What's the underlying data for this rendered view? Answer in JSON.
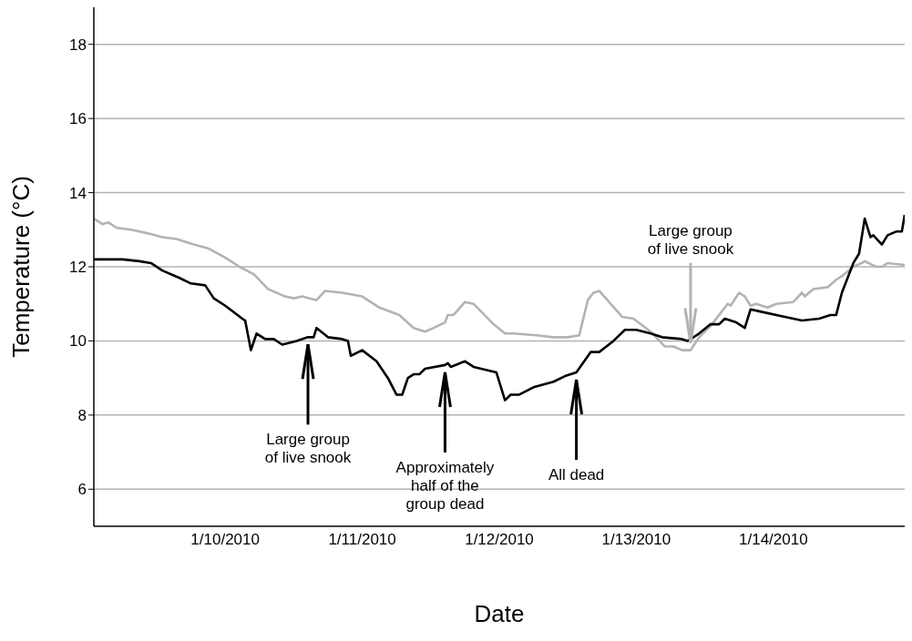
{
  "chart_data": {
    "type": "line",
    "xlabel": "Date",
    "ylabel": "Temperature (°C)",
    "xlim": [
      "2010-01-09T01:00",
      "2010-01-14T23:00"
    ],
    "ylim": [
      5,
      19
    ],
    "xticks": [
      {
        "value": "2010-01-10",
        "label": "1/10/2010"
      },
      {
        "value": "2010-01-11",
        "label": "1/11/2010"
      },
      {
        "value": "2010-01-12",
        "label": "1/12/2010"
      },
      {
        "value": "2010-01-13",
        "label": "1/13/2010"
      },
      {
        "value": "2010-01-14",
        "label": "1/14/2010"
      }
    ],
    "yticks": [
      6,
      8,
      10,
      12,
      14,
      16,
      18
    ],
    "grid": "y",
    "series": [
      {
        "color": "#b3b3b3",
        "x": [
          "2010-01-09T01:00",
          "2010-01-09T02:30",
          "2010-01-09T03:30",
          "2010-01-09T05:00",
          "2010-01-09T07:30",
          "2010-01-09T10:30",
          "2010-01-09T13:00",
          "2010-01-09T15:30",
          "2010-01-09T18:30",
          "2010-01-09T21:00",
          "2010-01-10T00:00",
          "2010-01-10T02:30",
          "2010-01-10T05:00",
          "2010-01-10T07:30",
          "2010-01-10T10:30",
          "2010-01-10T12:00",
          "2010-01-10T13:30",
          "2010-01-10T16:00",
          "2010-01-10T17:30",
          "2010-01-10T20:30",
          "2010-01-11T00:00",
          "2010-01-11T03:00",
          "2010-01-11T06:30",
          "2010-01-11T09:00",
          "2010-01-11T11:00",
          "2010-01-11T12:30",
          "2010-01-11T14:30",
          "2010-01-11T15:00",
          "2010-01-11T16:00",
          "2010-01-11T18:00",
          "2010-01-11T19:30",
          "2010-01-11T23:00",
          "2010-01-12T01:00",
          "2010-01-12T02:30",
          "2010-01-12T06:30",
          "2010-01-12T09:30",
          "2010-01-12T12:00",
          "2010-01-12T14:00",
          "2010-01-12T15:30",
          "2010-01-12T16:30",
          "2010-01-12T17:30",
          "2010-01-12T19:30",
          "2010-01-12T21:30",
          "2010-01-12T23:30",
          "2010-01-13T02:30",
          "2010-01-13T05:00",
          "2010-01-13T06:30",
          "2010-01-13T08:00",
          "2010-01-13T09:30",
          "2010-01-13T11:00",
          "2010-01-13T13:00",
          "2010-01-13T16:00",
          "2010-01-13T16:30",
          "2010-01-13T18:00",
          "2010-01-13T19:00",
          "2010-01-13T20:00",
          "2010-01-13T21:00",
          "2010-01-13T23:00",
          "2010-01-14T00:30",
          "2010-01-14T03:30",
          "2010-01-14T05:00",
          "2010-01-14T05:30",
          "2010-01-14T07:00",
          "2010-01-14T09:30",
          "2010-01-14T11:00",
          "2010-01-14T12:00",
          "2010-01-14T14:00",
          "2010-01-14T15:30",
          "2010-01-14T16:00",
          "2010-01-14T18:00",
          "2010-01-14T19:00",
          "2010-01-14T20:00",
          "2010-01-14T23:00"
        ],
        "values": [
          13.3,
          13.15,
          13.2,
          13.05,
          13.0,
          12.9,
          12.8,
          12.75,
          12.6,
          12.5,
          12.25,
          12.0,
          11.8,
          11.4,
          11.2,
          11.15,
          11.2,
          11.1,
          11.35,
          11.3,
          11.2,
          10.9,
          10.7,
          10.35,
          10.25,
          10.35,
          10.5,
          10.7,
          10.7,
          11.05,
          11.0,
          10.45,
          10.2,
          10.2,
          10.15,
          10.1,
          10.1,
          10.15,
          11.1,
          11.3,
          11.35,
          11.0,
          10.65,
          10.6,
          10.25,
          9.85,
          9.85,
          9.75,
          9.75,
          10.1,
          10.4,
          11.0,
          10.95,
          11.3,
          11.2,
          10.95,
          11.0,
          10.9,
          11.0,
          11.05,
          11.3,
          11.2,
          11.4,
          11.45,
          11.65,
          11.75,
          12.0,
          12.1,
          12.15,
          12.0,
          12.0,
          12.1,
          12.05
        ]
      },
      {
        "color": "#000000",
        "x": [
          "2010-01-09T01:00",
          "2010-01-09T06:00",
          "2010-01-09T09:00",
          "2010-01-09T11:00",
          "2010-01-09T13:00",
          "2010-01-09T16:00",
          "2010-01-09T18:00",
          "2010-01-09T20:30",
          "2010-01-09T22:00",
          "2010-01-10T00:00",
          "2010-01-10T03:00",
          "2010-01-10T03:30",
          "2010-01-10T04:30",
          "2010-01-10T05:30",
          "2010-01-10T07:00",
          "2010-01-10T08:30",
          "2010-01-10T10:00",
          "2010-01-10T12:30",
          "2010-01-10T14:30",
          "2010-01-10T15:30",
          "2010-01-10T16:00",
          "2010-01-10T18:00",
          "2010-01-10T20:30",
          "2010-01-10T21:30",
          "2010-01-10T22:00",
          "2010-01-11T00:00",
          "2010-01-11T02:30",
          "2010-01-11T04:30",
          "2010-01-11T06:00",
          "2010-01-11T07:00",
          "2010-01-11T08:00",
          "2010-01-11T09:00",
          "2010-01-11T10:00",
          "2010-01-11T11:00",
          "2010-01-11T14:30",
          "2010-01-11T15:00",
          "2010-01-11T15:30",
          "2010-01-11T18:00",
          "2010-01-11T19:30",
          "2010-01-11T23:30",
          "2010-01-12T01:00",
          "2010-01-12T02:00",
          "2010-01-12T03:30",
          "2010-01-12T06:00",
          "2010-01-12T09:30",
          "2010-01-12T11:30",
          "2010-01-12T13:30",
          "2010-01-12T16:00",
          "2010-01-12T17:30",
          "2010-01-12T20:00",
          "2010-01-12T22:00",
          "2010-01-13T00:00",
          "2010-01-13T02:30",
          "2010-01-13T04:30",
          "2010-01-13T08:00",
          "2010-01-13T09:00",
          "2010-01-13T11:00",
          "2010-01-13T13:00",
          "2010-01-13T14:30",
          "2010-01-13T15:30",
          "2010-01-13T17:30",
          "2010-01-13T19:00",
          "2010-01-13T20:00",
          "2010-01-13T21:30",
          "2010-01-14T02:00",
          "2010-01-14T05:00",
          "2010-01-14T08:00",
          "2010-01-14T10:00",
          "2010-01-14T11:00",
          "2010-01-14T12:00",
          "2010-01-14T14:00",
          "2010-01-14T15:00",
          "2010-01-14T16:00",
          "2010-01-14T17:00",
          "2010-01-14T17:30",
          "2010-01-14T19:00",
          "2010-01-14T20:00",
          "2010-01-14T21:30",
          "2010-01-14T22:30",
          "2010-01-14T23:00"
        ],
        "values": [
          12.2,
          12.2,
          12.15,
          12.1,
          11.9,
          11.7,
          11.55,
          11.5,
          11.15,
          10.95,
          10.6,
          10.55,
          9.75,
          10.2,
          10.05,
          10.05,
          9.9,
          10.0,
          10.1,
          10.1,
          10.35,
          10.1,
          10.05,
          10.0,
          9.6,
          9.75,
          9.45,
          9.0,
          8.55,
          8.55,
          9.0,
          9.1,
          9.1,
          9.25,
          9.35,
          9.4,
          9.3,
          9.45,
          9.3,
          9.15,
          8.4,
          8.55,
          8.55,
          8.75,
          8.9,
          9.05,
          9.15,
          9.7,
          9.7,
          10.0,
          10.3,
          10.3,
          10.2,
          10.1,
          10.05,
          10.0,
          10.2,
          10.45,
          10.45,
          10.6,
          10.5,
          10.35,
          10.85,
          10.8,
          10.65,
          10.55,
          10.6,
          10.7,
          10.7,
          11.3,
          12.1,
          12.35,
          13.3,
          12.8,
          12.85,
          12.6,
          12.85,
          12.95,
          12.95,
          13.4
        ]
      }
    ],
    "annotations": [
      {
        "text": "Large group of live snook",
        "x": "2010-01-10T14:30",
        "y": 10.1
      },
      {
        "text": "Approximately half of the group dead",
        "x": "2010-01-11T14:30",
        "y": 9.35
      },
      {
        "text": "All dead",
        "x": "2010-01-12T13:30",
        "y": 9.15
      },
      {
        "text": "Large group of live snook",
        "x": "2010-01-13T09:30",
        "y": 9.75
      }
    ]
  }
}
